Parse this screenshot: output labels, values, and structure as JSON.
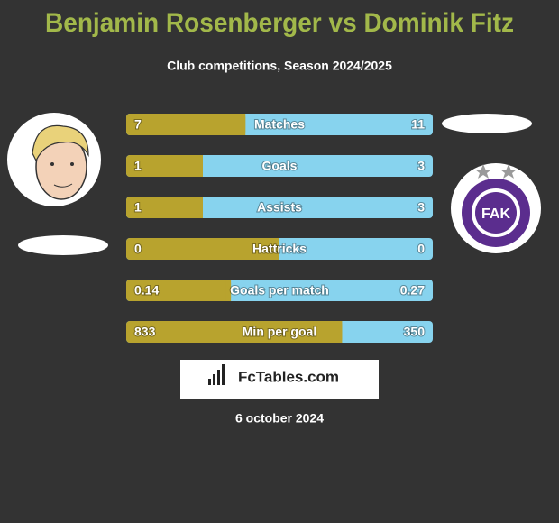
{
  "header": {
    "title": "Benjamin Rosenberger vs Dominik Fitz",
    "subtitle": "Club competitions, Season 2024/2025"
  },
  "colors": {
    "left": "#b8a32e",
    "right": "#87d3ee"
  },
  "rows": [
    {
      "label": "Matches",
      "left": 7,
      "right": 11
    },
    {
      "label": "Goals",
      "left": 1,
      "right": 3
    },
    {
      "label": "Assists",
      "left": 1,
      "right": 3
    },
    {
      "label": "Hattricks",
      "left": 0,
      "right": 0
    },
    {
      "label": "Goals per match",
      "left": 0.14,
      "right": 0.27
    },
    {
      "label": "Min per goal",
      "left": 833,
      "right": 350
    }
  ],
  "logo": {
    "text": "FAK"
  },
  "brand": "FcTables.com",
  "date": "6 october 2024"
}
